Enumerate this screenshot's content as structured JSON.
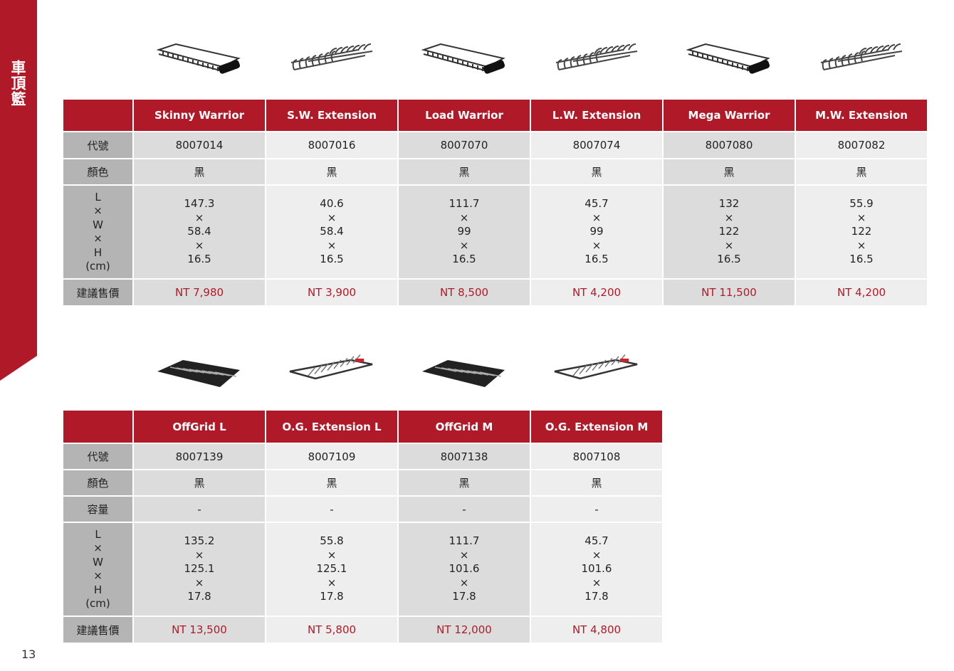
{
  "section_title": "車頂籃",
  "page_number": "13",
  "colors": {
    "accent": "#b01a28",
    "label_bg": "#b4b4b4"
  },
  "table1": {
    "row_labels": {
      "code": "代號",
      "color": "顏色",
      "dims": [
        "L",
        "×",
        "W",
        "×",
        "H",
        "(cm)"
      ],
      "price": "建議售價"
    },
    "products": [
      {
        "name": "Skinny Warrior",
        "code": "8007014",
        "color": "黑",
        "dims": [
          "147.3",
          "×",
          "58.4",
          "×",
          "16.5"
        ],
        "price": "NT 7,980",
        "image": "basket-closed"
      },
      {
        "name": "S.W. Extension",
        "code": "8007016",
        "color": "黑",
        "dims": [
          "40.6",
          "×",
          "58.4",
          "×",
          "16.5"
        ],
        "price": "NT 3,900",
        "image": "extension"
      },
      {
        "name": "Load Warrior",
        "code": "8007070",
        "color": "黑",
        "dims": [
          "111.7",
          "×",
          "99",
          "×",
          "16.5"
        ],
        "price": "NT 8,500",
        "image": "basket-closed"
      },
      {
        "name": "L.W. Extension",
        "code": "8007074",
        "color": "黑",
        "dims": [
          "45.7",
          "×",
          "99",
          "×",
          "16.5"
        ],
        "price": "NT 4,200",
        "image": "extension"
      },
      {
        "name": "Mega Warrior",
        "code": "8007080",
        "color": "黑",
        "dims": [
          "132",
          "×",
          "122",
          "×",
          "16.5"
        ],
        "price": "NT 11,500",
        "image": "basket-closed"
      },
      {
        "name": "M.W. Extension",
        "code": "8007082",
        "color": "黑",
        "dims": [
          "55.9",
          "×",
          "122",
          "×",
          "16.5"
        ],
        "price": "NT 4,200",
        "image": "extension"
      }
    ]
  },
  "table2": {
    "row_labels": {
      "code": "代號",
      "color": "顏色",
      "capacity": "容量",
      "dims": [
        "L",
        "×",
        "W",
        "×",
        "H",
        "(cm)"
      ],
      "price": "建議售價"
    },
    "products": [
      {
        "name": "OffGrid L",
        "code": "8007139",
        "color": "黑",
        "capacity": "-",
        "dims": [
          "135.2",
          "×",
          "125.1",
          "×",
          "17.8"
        ],
        "price": "NT 13,500",
        "image": "offgrid"
      },
      {
        "name": "O.G. Extension L",
        "code": "8007109",
        "color": "黑",
        "capacity": "-",
        "dims": [
          "55.8",
          "×",
          "125.1",
          "×",
          "17.8"
        ],
        "price": "NT 5,800",
        "image": "offgrid-extension"
      },
      {
        "name": "OffGrid M",
        "code": "8007138",
        "color": "黑",
        "capacity": "-",
        "dims": [
          "111.7",
          "×",
          "101.6",
          "×",
          "17.8"
        ],
        "price": "NT 12,000",
        "image": "offgrid"
      },
      {
        "name": "O.G. Extension M",
        "code": "8007108",
        "color": "黑",
        "capacity": "-",
        "dims": [
          "45.7",
          "×",
          "101.6",
          "×",
          "17.8"
        ],
        "price": "NT 4,800",
        "image": "offgrid-extension"
      }
    ]
  }
}
